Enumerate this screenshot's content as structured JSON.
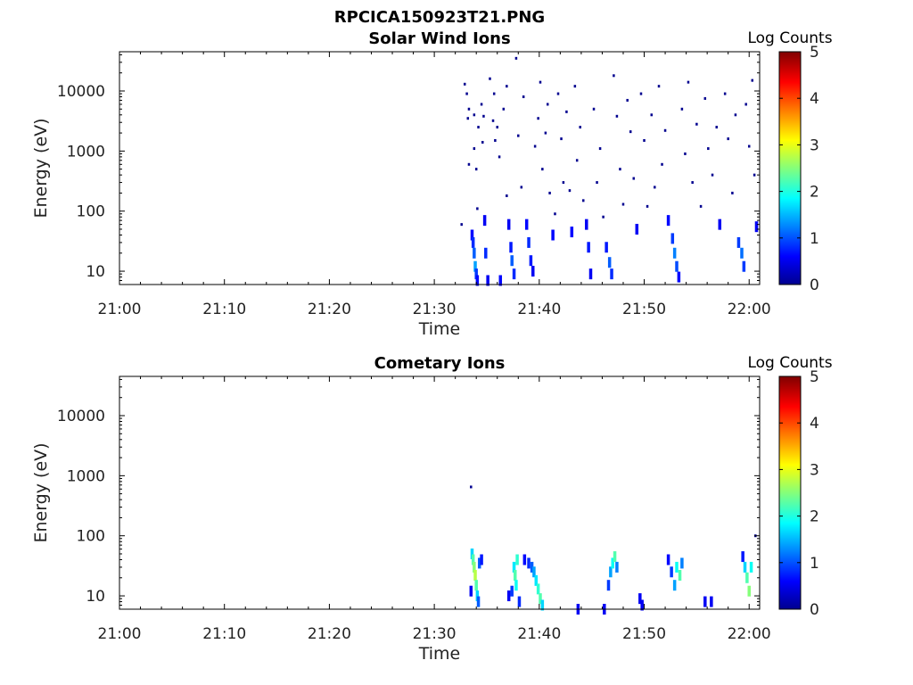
{
  "figure": {
    "title": "RPCICA150923T21.PNG"
  },
  "colors": {
    "jet_stops": [
      "#00008f",
      "#0000ff",
      "#00ffff",
      "#ffff00",
      "#ff0000",
      "#800000"
    ],
    "axis": "#000000",
    "background": "#ffffff"
  },
  "chart_data": [
    {
      "type": "heatmap",
      "title": "Solar Wind Ions",
      "xlabel": "Time",
      "ylabel": "Energy (eV)",
      "x_ticks": [
        "21:00",
        "21:10",
        "21:20",
        "21:30",
        "21:40",
        "21:50",
        "22:00"
      ],
      "x_range_minutes": [
        0,
        61
      ],
      "y_scale": "log",
      "y_ticks": [
        "10",
        "100",
        "1000",
        "10000"
      ],
      "y_range": [
        6,
        45000
      ],
      "colorbar": {
        "label": "Log Counts",
        "range": [
          0,
          5
        ],
        "ticks": [
          "0",
          "1",
          "2",
          "3",
          "4",
          "5"
        ]
      },
      "grid": false,
      "cells": [
        [
          32.6,
          60,
          0
        ],
        [
          32.9,
          13000,
          0
        ],
        [
          33.1,
          9000,
          0
        ],
        [
          33.3,
          5000,
          0
        ],
        [
          33.2,
          3500,
          0
        ],
        [
          33.3,
          600,
          0
        ],
        [
          33.6,
          40,
          0.3
        ],
        [
          33.7,
          30,
          0.5
        ],
        [
          33.8,
          20,
          0.8
        ],
        [
          33.9,
          12,
          1.2
        ],
        [
          34.0,
          9,
          0.6
        ],
        [
          34.1,
          7,
          0.3
        ],
        [
          33.8,
          4000,
          0
        ],
        [
          33.8,
          1100,
          0
        ],
        [
          34.0,
          500,
          0
        ],
        [
          34.1,
          110,
          0
        ],
        [
          34.2,
          2500,
          0
        ],
        [
          34.5,
          6000,
          0
        ],
        [
          34.6,
          1400,
          0
        ],
        [
          34.7,
          3800,
          0
        ],
        [
          34.8,
          70,
          0.2
        ],
        [
          34.9,
          20,
          0.5
        ],
        [
          35.1,
          7,
          0.2
        ],
        [
          35.3,
          16000,
          0
        ],
        [
          35.6,
          3200,
          0
        ],
        [
          35.8,
          1500,
          0
        ],
        [
          35.7,
          9000,
          0
        ],
        [
          36.0,
          2500,
          0
        ],
        [
          36.2,
          800,
          0
        ],
        [
          36.3,
          7,
          0.3
        ],
        [
          36.6,
          5000,
          0
        ],
        [
          36.9,
          12000,
          0
        ],
        [
          36.9,
          180,
          0
        ],
        [
          37.1,
          60,
          0.2
        ],
        [
          37.3,
          25,
          0.4
        ],
        [
          37.4,
          15,
          0.8
        ],
        [
          37.6,
          9,
          0.5
        ],
        [
          37.8,
          35000,
          0
        ],
        [
          38.0,
          1800,
          0
        ],
        [
          38.3,
          250,
          0
        ],
        [
          38.5,
          8000,
          0
        ],
        [
          38.8,
          60,
          0.3
        ],
        [
          39.0,
          30,
          0.5
        ],
        [
          39.2,
          15,
          0.4
        ],
        [
          39.4,
          10,
          0.2
        ],
        [
          39.6,
          1200,
          0
        ],
        [
          39.9,
          3500,
          0
        ],
        [
          40.1,
          14000,
          0
        ],
        [
          40.3,
          500,
          0
        ],
        [
          40.6,
          2000,
          0
        ],
        [
          40.8,
          6000,
          0
        ],
        [
          41.0,
          200,
          0
        ],
        [
          41.3,
          40,
          0.3
        ],
        [
          41.5,
          90,
          0
        ],
        [
          41.8,
          9000,
          0
        ],
        [
          42.1,
          1600,
          0
        ],
        [
          42.3,
          300,
          0
        ],
        [
          42.6,
          4500,
          0
        ],
        [
          42.9,
          220,
          0
        ],
        [
          43.1,
          45,
          0.3
        ],
        [
          43.4,
          12000,
          0
        ],
        [
          43.6,
          700,
          0
        ],
        [
          43.9,
          2500,
          0
        ],
        [
          44.2,
          150,
          0
        ],
        [
          44.5,
          60,
          0.2
        ],
        [
          44.7,
          25,
          0.4
        ],
        [
          44.9,
          9,
          0.2
        ],
        [
          45.2,
          5000,
          0
        ],
        [
          45.5,
          300,
          0
        ],
        [
          45.8,
          1100,
          0
        ],
        [
          46.1,
          80,
          0
        ],
        [
          46.4,
          25,
          0.4
        ],
        [
          46.7,
          14,
          0.8
        ],
        [
          46.9,
          9,
          0.5
        ],
        [
          47.1,
          18000,
          0
        ],
        [
          47.4,
          3800,
          0
        ],
        [
          47.7,
          500,
          0
        ],
        [
          48.0,
          130,
          0
        ],
        [
          48.4,
          7000,
          0
        ],
        [
          48.7,
          2100,
          0
        ],
        [
          49.0,
          350,
          0
        ],
        [
          49.3,
          50,
          0.2
        ],
        [
          49.7,
          9000,
          0
        ],
        [
          50.0,
          1500,
          0
        ],
        [
          50.3,
          120,
          0
        ],
        [
          50.7,
          4000,
          0
        ],
        [
          51.0,
          250,
          0
        ],
        [
          51.4,
          12000,
          0
        ],
        [
          51.7,
          600,
          0
        ],
        [
          52.0,
          2200,
          0
        ],
        [
          52.3,
          70,
          0.3
        ],
        [
          52.7,
          35,
          0.6
        ],
        [
          52.9,
          20,
          1.0
        ],
        [
          53.1,
          12,
          0.7
        ],
        [
          53.3,
          8,
          0.3
        ],
        [
          53.6,
          5000,
          0
        ],
        [
          53.9,
          900,
          0
        ],
        [
          54.2,
          14000,
          0
        ],
        [
          54.6,
          300,
          0
        ],
        [
          55.0,
          2800,
          0
        ],
        [
          55.4,
          120,
          0
        ],
        [
          55.8,
          7500,
          0
        ],
        [
          56.1,
          1100,
          0
        ],
        [
          56.5,
          400,
          0
        ],
        [
          56.9,
          2500,
          0
        ],
        [
          57.2,
          60,
          0.2
        ],
        [
          57.7,
          9000,
          0
        ],
        [
          58.0,
          1600,
          0
        ],
        [
          58.4,
          200,
          0
        ],
        [
          58.7,
          4000,
          0
        ],
        [
          59.0,
          30,
          0.6
        ],
        [
          59.3,
          20,
          0.9
        ],
        [
          59.5,
          12,
          0.6
        ],
        [
          59.7,
          6000,
          0
        ],
        [
          60.0,
          1200,
          0
        ],
        [
          60.3,
          15000,
          0
        ],
        [
          60.5,
          400,
          0
        ],
        [
          60.7,
          55,
          0.2
        ]
      ]
    },
    {
      "type": "heatmap",
      "title": "Cometary Ions",
      "xlabel": "Time",
      "ylabel": "Energy (eV)",
      "x_ticks": [
        "21:00",
        "21:10",
        "21:20",
        "21:30",
        "21:40",
        "21:50",
        "22:00"
      ],
      "x_range_minutes": [
        0,
        61
      ],
      "y_scale": "log",
      "y_ticks": [
        "10",
        "100",
        "1000",
        "10000"
      ],
      "y_range": [
        6,
        45000
      ],
      "colorbar": {
        "label": "Log Counts",
        "range": [
          0,
          5
        ],
        "ticks": [
          "0",
          "1",
          "2",
          "3",
          "4",
          "5"
        ]
      },
      "grid": false,
      "cells": [
        [
          33.5,
          650,
          0
        ],
        [
          33.6,
          50,
          1.5
        ],
        [
          33.7,
          40,
          2.2
        ],
        [
          33.8,
          30,
          2.5
        ],
        [
          33.9,
          22,
          2.8
        ],
        [
          34.0,
          15,
          2.2
        ],
        [
          34.1,
          10,
          1.5
        ],
        [
          34.2,
          8,
          0.8
        ],
        [
          33.5,
          12,
          0.2
        ],
        [
          34.3,
          35,
          0.8
        ],
        [
          34.5,
          40,
          0.4
        ],
        [
          37.1,
          10,
          0.2
        ],
        [
          37.4,
          12,
          0.6
        ],
        [
          37.6,
          30,
          1.6
        ],
        [
          37.7,
          22,
          2.2
        ],
        [
          37.8,
          15,
          1.8
        ],
        [
          37.9,
          40,
          2.0
        ],
        [
          38.1,
          8,
          0.5
        ],
        [
          38.6,
          40,
          0.3
        ],
        [
          39.0,
          35,
          0.5
        ],
        [
          39.3,
          30,
          0.8
        ],
        [
          39.5,
          25,
          1.2
        ],
        [
          39.7,
          18,
          1.6
        ],
        [
          39.9,
          13,
          2.0
        ],
        [
          40.1,
          9,
          2.2
        ],
        [
          40.3,
          7,
          1.5
        ],
        [
          43.7,
          6,
          0.2
        ],
        [
          46.2,
          6,
          0.2
        ],
        [
          46.6,
          15,
          0.6
        ],
        [
          46.8,
          25,
          1.2
        ],
        [
          47.0,
          35,
          1.8
        ],
        [
          47.2,
          45,
          2.2
        ],
        [
          47.4,
          30,
          1.0
        ],
        [
          49.6,
          9,
          0.2
        ],
        [
          49.8,
          7,
          0.2
        ],
        [
          52.3,
          40,
          0.3
        ],
        [
          52.6,
          25,
          0.6
        ],
        [
          52.9,
          15,
          1.2
        ],
        [
          53.1,
          30,
          1.8
        ],
        [
          53.4,
          22,
          2.2
        ],
        [
          53.6,
          35,
          1.0
        ],
        [
          55.8,
          8,
          0.2
        ],
        [
          56.4,
          8,
          0.2
        ],
        [
          59.4,
          45,
          0.4
        ],
        [
          59.6,
          30,
          1.5
        ],
        [
          59.8,
          20,
          2.2
        ],
        [
          60.0,
          12,
          2.5
        ],
        [
          60.2,
          30,
          1.8
        ],
        [
          60.6,
          100,
          0
        ]
      ]
    }
  ]
}
